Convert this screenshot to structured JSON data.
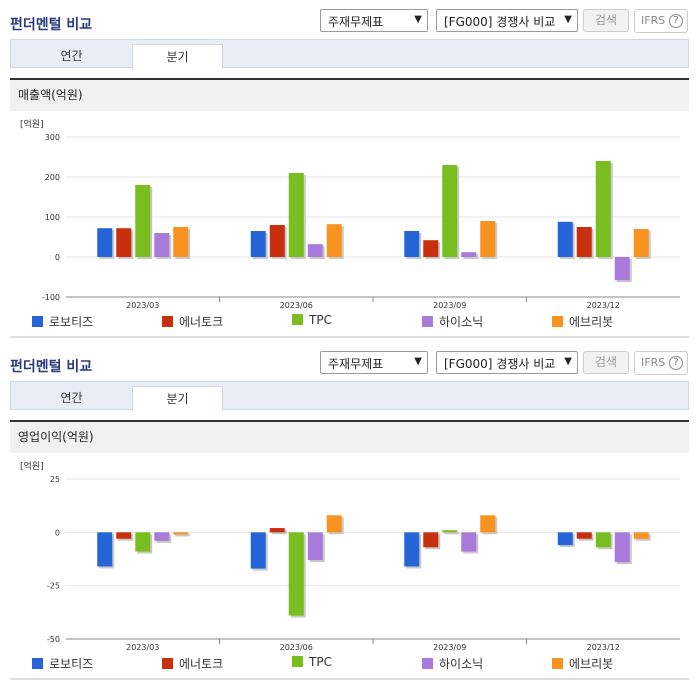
{
  "header": {
    "title": "펀더멘털 비교",
    "statement_select": "주재무제표",
    "group_select": "[FG000] 경쟁사 비교",
    "search_label": "검색",
    "ifrs_label": "IFRS",
    "help_glyph": "?"
  },
  "tabs": [
    {
      "label": "연간",
      "active": false
    },
    {
      "label": "분기",
      "active": true
    }
  ],
  "colors": {
    "로보티즈": "#2565d8",
    "에너토크": "#c8300d",
    "TPC": "#78be1e",
    "하이소닉": "#a97ad9",
    "에브리봇": "#f7931e"
  },
  "charts": [
    {
      "metric_label": "매출액(억원)"
    },
    {
      "metric_label": "영업이익(억원)"
    }
  ],
  "chart_data": [
    {
      "type": "bar",
      "title": "매출액(억원)",
      "unit_label": "[억원]",
      "categories": [
        "2023/03",
        "2023/06",
        "2023/09",
        "2023/12"
      ],
      "ylim": [
        -100,
        300
      ],
      "yticks": [
        300,
        200,
        100,
        0,
        -100
      ],
      "grid": true,
      "legend_position": "bottom",
      "series": [
        {
          "name": "로보티즈",
          "values": [
            72,
            65,
            65,
            88
          ]
        },
        {
          "name": "에너토크",
          "values": [
            72,
            80,
            42,
            75
          ]
        },
        {
          "name": "TPC",
          "values": [
            180,
            210,
            230,
            240
          ]
        },
        {
          "name": "하이소닉",
          "values": [
            60,
            32,
            12,
            -58
          ]
        },
        {
          "name": "에브리봇",
          "values": [
            75,
            82,
            90,
            70
          ]
        }
      ]
    },
    {
      "type": "bar",
      "title": "영업이익(억원)",
      "unit_label": "[억원]",
      "categories": [
        "2023/03",
        "2023/06",
        "2023/09",
        "2023/12"
      ],
      "ylim": [
        -50,
        25
      ],
      "yticks": [
        25,
        0,
        -25,
        -50
      ],
      "grid": true,
      "legend_position": "bottom",
      "series": [
        {
          "name": "로보티즈",
          "values": [
            -16,
            -17,
            -16,
            -6
          ]
        },
        {
          "name": "에너토크",
          "values": [
            -3,
            2,
            -7,
            -3
          ]
        },
        {
          "name": "TPC",
          "values": [
            -9,
            -39,
            1,
            -7
          ]
        },
        {
          "name": "하이소닉",
          "values": [
            -4,
            -13,
            -9,
            -14
          ]
        },
        {
          "name": "에브리봇",
          "values": [
            -1,
            8,
            8,
            -3
          ]
        }
      ]
    }
  ]
}
